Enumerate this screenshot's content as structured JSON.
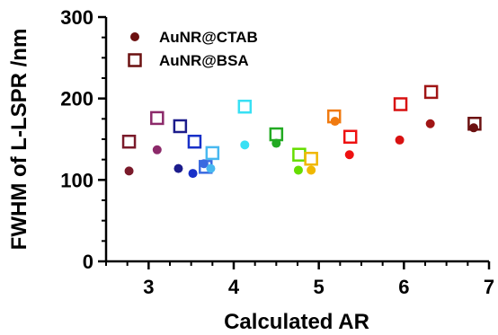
{
  "chart_data": {
    "type": "scatter",
    "xlabel": "Calculated AR",
    "ylabel": "FWHM of L-LSPR /nm",
    "xlim": [
      2.5,
      7.0
    ],
    "ylim": [
      0,
      300
    ],
    "xticks": [
      3,
      4,
      5,
      6,
      7
    ],
    "yticks": [
      0,
      100,
      200,
      300
    ],
    "xtick_labels": [
      "3",
      "4",
      "5",
      "6",
      "7"
    ],
    "ytick_labels": [
      "0",
      "100",
      "200",
      "300"
    ],
    "legend_position": "top-left",
    "series": [
      {
        "name": "AuNR@CTAB",
        "marker": "filled-circle",
        "legend_color": "#6b1010",
        "points": [
          {
            "x": 2.77,
            "y": 111,
            "color": "#7a1a2a"
          },
          {
            "x": 3.1,
            "y": 137,
            "color": "#8c2a6a"
          },
          {
            "x": 3.35,
            "y": 114,
            "color": "#1c1c8c"
          },
          {
            "x": 3.52,
            "y": 108,
            "color": "#1830c8"
          },
          {
            "x": 3.65,
            "y": 120,
            "color": "#3a6ae0"
          },
          {
            "x": 3.73,
            "y": 114,
            "color": "#48b8f0"
          },
          {
            "x": 4.13,
            "y": 143,
            "color": "#38e0f4"
          },
          {
            "x": 4.5,
            "y": 145,
            "color": "#22aa22"
          },
          {
            "x": 4.76,
            "y": 112,
            "color": "#66dd00"
          },
          {
            "x": 4.91,
            "y": 112,
            "color": "#f0b800"
          },
          {
            "x": 5.19,
            "y": 172,
            "color": "#f07a10"
          },
          {
            "x": 5.36,
            "y": 131,
            "color": "#ee1111"
          },
          {
            "x": 5.95,
            "y": 149,
            "color": "#d81111"
          },
          {
            "x": 6.31,
            "y": 169,
            "color": "#a01515"
          },
          {
            "x": 6.82,
            "y": 164,
            "color": "#6b1010"
          }
        ]
      },
      {
        "name": "AuNR@BSA",
        "marker": "open-square",
        "legend_color": "#6b1010",
        "points": [
          {
            "x": 2.77,
            "y": 147,
            "color": "#7a1a2a"
          },
          {
            "x": 3.1,
            "y": 176,
            "color": "#8c2a6a"
          },
          {
            "x": 3.37,
            "y": 166,
            "color": "#1c1c8c"
          },
          {
            "x": 3.54,
            "y": 147,
            "color": "#1830c8"
          },
          {
            "x": 3.67,
            "y": 116,
            "color": "#3a6ae0"
          },
          {
            "x": 3.75,
            "y": 133,
            "color": "#48b8f0"
          },
          {
            "x": 4.13,
            "y": 190,
            "color": "#38e0f4"
          },
          {
            "x": 4.5,
            "y": 156,
            "color": "#22aa22"
          },
          {
            "x": 4.77,
            "y": 131,
            "color": "#66dd00"
          },
          {
            "x": 4.91,
            "y": 126,
            "color": "#f0b800"
          },
          {
            "x": 5.18,
            "y": 178,
            "color": "#f07a10"
          },
          {
            "x": 5.37,
            "y": 153,
            "color": "#ee1111"
          },
          {
            "x": 5.96,
            "y": 193,
            "color": "#d81111"
          },
          {
            "x": 6.32,
            "y": 208,
            "color": "#a01515"
          },
          {
            "x": 6.83,
            "y": 169,
            "color": "#6b1010"
          }
        ]
      }
    ]
  }
}
